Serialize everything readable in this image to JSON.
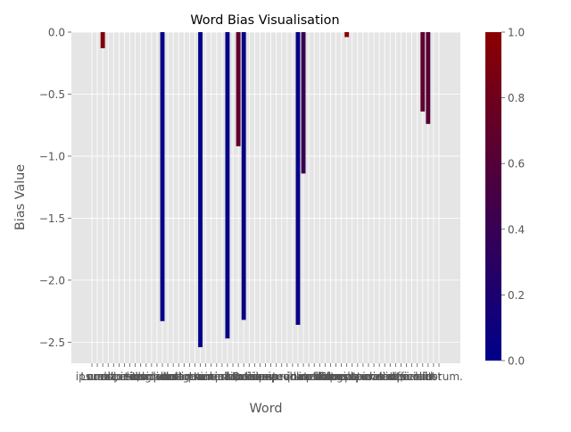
{
  "chart_data": {
    "type": "bar",
    "title": "Word Bias Visualisation",
    "xlabel": "Word",
    "ylabel": "Bias Value",
    "ylim": [
      -2.67,
      0.0
    ],
    "grid": true,
    "style": "ggplot",
    "categories": [
      "ipsum",
      "Lorem",
      "amet,",
      "sit",
      "dolor",
      "consectetur",
      "adipiscing",
      "elit,",
      "sed",
      "do",
      "eiusmod",
      "tempor",
      "incididunt",
      "ut",
      "labore",
      "et",
      "dolore",
      "magna",
      "aliqua.",
      "Ut",
      "enim",
      "ad",
      "minim",
      "veniam,",
      "quis",
      "nostrud",
      "exercitation",
      "ullamco",
      "laboris",
      "nisi",
      "ut",
      "aliquip",
      "ex",
      "ea",
      "commodo",
      "consequat.",
      "Duis aute irure dolor",
      "in",
      "reprehenderit",
      "in",
      "voluptate",
      "velit",
      "esse",
      "cillum",
      "dolore",
      "eu",
      "fugiat",
      "nulla",
      "pariatur.",
      "Excepteur sint",
      "occaecat",
      "cupidatat",
      "non",
      "proident,",
      "sunt",
      "in",
      "culpa",
      "qui",
      "officia",
      "deserunt",
      "mollit",
      "anim",
      "id",
      "est",
      "laborum."
    ],
    "tick_labels": [
      "ipsum",
      "Lorem",
      "amet,",
      "sit",
      "dolor",
      "consectetur",
      "adipiscing",
      "elit,",
      "sed",
      "do",
      "eiusmod",
      "tempor",
      "incididunt",
      "ut",
      "labore",
      "et",
      "dolore",
      "magna",
      "aliqua.",
      "Ut",
      "enim",
      "ad",
      "minim",
      "veniam,",
      "quis",
      "nostrud",
      "exercitation",
      "ullamco",
      "laboris",
      "nisi",
      "ut",
      "aliquip",
      "ex",
      "ea",
      "commodo",
      "consequat.",
      "Duis aute irure dolor",
      "in",
      "reprehenderit",
      "in",
      "voluptate",
      "velit",
      "esse",
      "cillum",
      "dolore",
      "eu",
      "fugiat",
      "nulla",
      "pariatur.",
      "Excepteur sint",
      "occaecat",
      "cupidatat",
      "non",
      "proident,",
      "sunt",
      "in",
      "culpa",
      "qui",
      "officia",
      "deserunt",
      "mollit",
      "anim",
      "id",
      "est",
      "laborum."
    ],
    "values": [
      0,
      0,
      -0.13,
      0,
      0,
      0,
      0,
      0,
      0,
      0,
      0,
      0,
      0,
      -2.33,
      0,
      0,
      0,
      0,
      0,
      0,
      -2.54,
      0,
      0,
      0,
      0,
      -2.47,
      0,
      -0.92,
      -2.32,
      0,
      0,
      0,
      0,
      0,
      0,
      0,
      0,
      0,
      -2.36,
      -1.14,
      0,
      0,
      0,
      0,
      0,
      0,
      0,
      -0.04,
      0,
      0,
      0,
      0,
      0,
      0,
      0,
      0,
      0,
      0,
      0,
      0,
      0,
      -0.64,
      -0.74,
      0,
      0
    ],
    "color_values": [
      0.5,
      0.5,
      0.92,
      0.5,
      0.5,
      0.5,
      0.5,
      0.5,
      0.5,
      0.5,
      0.5,
      0.5,
      0.5,
      0.02,
      0.5,
      0.5,
      0.5,
      0.5,
      0.5,
      0.5,
      0.0,
      0.5,
      0.5,
      0.5,
      0.5,
      0.03,
      0.5,
      0.7,
      0.05,
      0.5,
      0.5,
      0.5,
      0.5,
      0.5,
      0.5,
      0.5,
      0.5,
      0.5,
      0.04,
      0.4,
      0.5,
      0.5,
      0.5,
      0.5,
      0.5,
      0.5,
      0.5,
      0.98,
      0.5,
      0.5,
      0.5,
      0.5,
      0.5,
      0.5,
      0.5,
      0.5,
      0.5,
      0.5,
      0.5,
      0.5,
      0.5,
      0.68,
      0.62,
      0.5,
      0.5
    ],
    "colorbar": {
      "colormap": [
        "#00008b",
        "#8b0000"
      ],
      "range": [
        0.0,
        1.0
      ],
      "ticks": [
        "0.0",
        "0.2",
        "0.4",
        "0.6",
        "0.8",
        "1.0"
      ]
    },
    "y_ticks": [
      "0.0",
      "−0.5",
      "−1.0",
      "−1.5",
      "−2.0",
      "−2.5"
    ],
    "y_tick_values": [
      0.0,
      -0.5,
      -1.0,
      -1.5,
      -2.0,
      -2.5
    ],
    "colors": {
      "panel_bg": "#e5e5e5",
      "grid": "#ffffff",
      "tick_label": "#555555",
      "axis_label": "#555555",
      "title": "#000000"
    }
  }
}
